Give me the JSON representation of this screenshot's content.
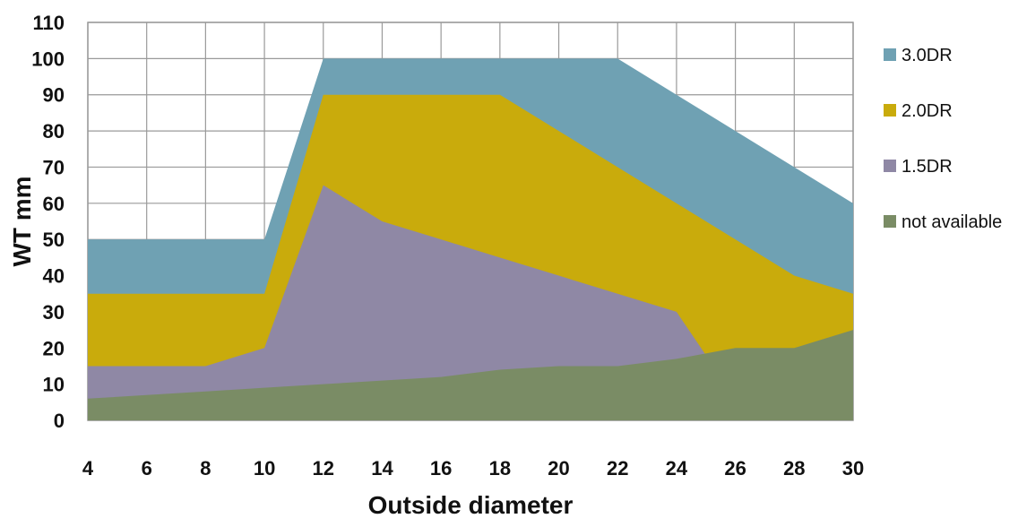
{
  "chart_data": {
    "type": "area",
    "title": "",
    "xlabel": "Outside diameter",
    "ylabel": "WT mm",
    "x": [
      4,
      6,
      8,
      10,
      12,
      14,
      16,
      18,
      20,
      22,
      24,
      26,
      28,
      30
    ],
    "xlim": [
      4,
      30
    ],
    "ylim": [
      0,
      110
    ],
    "x_ticks": [
      "4",
      "6",
      "8",
      "10",
      "12",
      "14",
      "16",
      "18",
      "20",
      "22",
      "24",
      "26",
      "28",
      "30"
    ],
    "y_ticks": [
      "0",
      "10",
      "20",
      "30",
      "40",
      "50",
      "60",
      "70",
      "80",
      "90",
      "100",
      "110"
    ],
    "grid": true,
    "legend_position": "right",
    "series": [
      {
        "name": "3.0DR",
        "color": "#6fa1b3",
        "points": [
          [
            4,
            50
          ],
          [
            6,
            50
          ],
          [
            8,
            50
          ],
          [
            10,
            50
          ],
          [
            12,
            100
          ],
          [
            14,
            100
          ],
          [
            16,
            100
          ],
          [
            18,
            100
          ],
          [
            20,
            100
          ],
          [
            22,
            100
          ],
          [
            24,
            90
          ],
          [
            26,
            80
          ],
          [
            28,
            70
          ],
          [
            30,
            60
          ]
        ]
      },
      {
        "name": "2.0DR",
        "color": "#c9ab0c",
        "points": [
          [
            4,
            35
          ],
          [
            6,
            35
          ],
          [
            8,
            35
          ],
          [
            10,
            35
          ],
          [
            12,
            90
          ],
          [
            14,
            90
          ],
          [
            16,
            90
          ],
          [
            18,
            90
          ],
          [
            20,
            80
          ],
          [
            22,
            70
          ],
          [
            24,
            60
          ],
          [
            26,
            50
          ],
          [
            28,
            40
          ],
          [
            30,
            35
          ]
        ]
      },
      {
        "name": "1.5DR",
        "color": "#8f88a5",
        "points": [
          [
            4,
            15
          ],
          [
            6,
            15
          ],
          [
            8,
            15
          ],
          [
            10,
            20
          ],
          [
            12,
            65
          ],
          [
            14,
            55
          ],
          [
            16,
            50
          ],
          [
            18,
            45
          ],
          [
            20,
            40
          ],
          [
            22,
            35
          ],
          [
            24,
            30
          ],
          [
            25,
            18
          ]
        ]
      },
      {
        "name": "not available",
        "color": "#7a8c65",
        "points": [
          [
            4,
            6
          ],
          [
            6,
            7
          ],
          [
            8,
            8
          ],
          [
            10,
            9
          ],
          [
            12,
            10
          ],
          [
            14,
            11
          ],
          [
            16,
            12
          ],
          [
            18,
            14
          ],
          [
            20,
            15
          ],
          [
            22,
            15
          ],
          [
            24,
            17
          ],
          [
            26,
            20
          ],
          [
            28,
            20
          ],
          [
            30,
            25
          ]
        ]
      }
    ]
  }
}
